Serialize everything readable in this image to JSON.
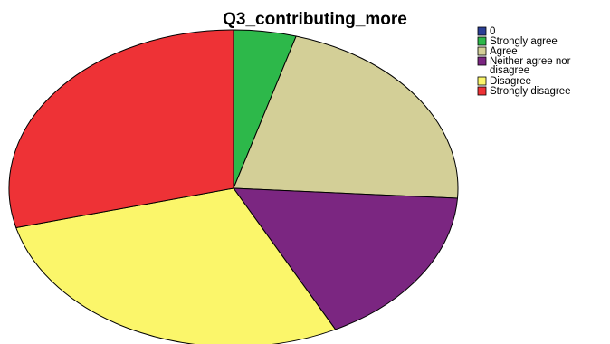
{
  "chart_data": {
    "type": "pie",
    "title": "Q3_contributing_more",
    "categories": [
      "0",
      "Strongly agree",
      "Agree",
      "Neither agree nor disagree",
      "Disagree",
      "Strongly disagree"
    ],
    "legend_lines": [
      [
        "0"
      ],
      [
        "Strongly agree"
      ],
      [
        "Agree"
      ],
      [
        "Neither agree nor",
        "disagree"
      ],
      [
        "Disagree"
      ],
      [
        "Strongly disagree"
      ]
    ],
    "values": [
      0,
      4.5,
      21.5,
      16.5,
      28.5,
      29.0
    ],
    "value_unit": "percent",
    "colors": [
      "#2b3f96",
      "#2db84a",
      "#d3cf97",
      "#7b2681",
      "#fbf66a",
      "#ee3236"
    ],
    "start_angle_deg": 0,
    "direction": "clockwise",
    "legend_placement": "top-right",
    "grid": false
  }
}
